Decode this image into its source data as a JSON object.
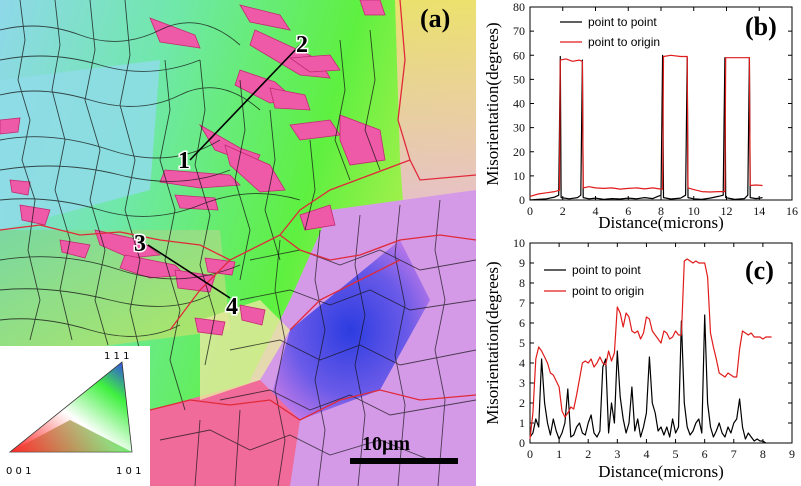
{
  "panel_a": {
    "label": "(a)",
    "point_labels": [
      "1",
      "2",
      "3",
      "4"
    ],
    "scale_bar": "10μm",
    "key": {
      "top": "1 1 1",
      "bottom_left": "0 0 1",
      "bottom_right": "1 0 1"
    },
    "colors": {
      "green": "#6fe85f",
      "cyan": "#7fe8e0",
      "pink": "#ee5aa8",
      "blue": "#3c57e8",
      "red_boundary": "#e02a3a",
      "grain_boundary": "#111111"
    }
  },
  "chart_data": [
    {
      "type": "line",
      "panel": "(b)",
      "xlabel": "Distance(microns)",
      "ylabel": "Misorientation(degrees)",
      "xlim": [
        0,
        16
      ],
      "ylim": [
        0,
        80
      ],
      "xticks": [
        0,
        2,
        4,
        6,
        8,
        10,
        12,
        14,
        16
      ],
      "yticks": [
        0,
        10,
        20,
        30,
        40,
        50,
        60,
        70,
        80
      ],
      "legend_position": "top-center",
      "series": [
        {
          "name": "point to point",
          "color": "#000000",
          "x": [
            0,
            0.5,
            1.0,
            1.5,
            1.75,
            1.8,
            1.85,
            1.9,
            2.4,
            2.9,
            3.1,
            3.15,
            3.2,
            3.25,
            3.6,
            4.0,
            4.5,
            5.0,
            5.5,
            6.0,
            6.5,
            7.0,
            7.5,
            7.8,
            8.0,
            8.05,
            8.1,
            8.15,
            8.6,
            9.2,
            9.5,
            9.55,
            9.6,
            9.65,
            10.0,
            10.5,
            11.0,
            11.5,
            11.8,
            11.85,
            11.9,
            11.95,
            12.5,
            13.1,
            13.3,
            13.35,
            13.4,
            13.45,
            13.8,
            14.2
          ],
          "y": [
            0,
            0.3,
            0.5,
            1.2,
            2,
            30,
            59.5,
            1,
            0.5,
            1,
            2,
            30,
            58,
            1,
            0.5,
            0.8,
            0.3,
            0.6,
            0.4,
            0.8,
            0.5,
            1.0,
            0.6,
            1.5,
            2,
            30,
            60,
            1,
            0.4,
            0.8,
            2,
            30,
            59,
            1,
            0.5,
            0.3,
            0.8,
            1.5,
            2,
            30,
            59,
            1,
            0.3,
            0.6,
            2,
            30,
            59,
            1,
            0.6,
            1.0
          ]
        },
        {
          "name": "point to origin",
          "color": "#e01b1b",
          "x": [
            0,
            0.5,
            1.0,
            1.5,
            1.8,
            1.85,
            2.2,
            2.6,
            3.0,
            3.2,
            3.25,
            3.6,
            4.0,
            4.5,
            5.0,
            5.5,
            6.0,
            6.5,
            7.0,
            7.5,
            8.0,
            8.1,
            8.15,
            8.6,
            9.2,
            9.6,
            9.65,
            10.0,
            10.5,
            11.0,
            11.5,
            11.9,
            11.95,
            12.5,
            13.4,
            13.45,
            13.8,
            14.2
          ],
          "y": [
            1.5,
            2.5,
            3.0,
            3.5,
            4,
            58,
            58.5,
            57.5,
            58,
            57.5,
            5,
            5.5,
            5,
            4.8,
            5,
            4.5,
            4.8,
            5,
            4.6,
            5,
            4.5,
            4.5,
            59.5,
            60,
            59.5,
            59.5,
            5,
            4.3,
            3.5,
            3.3,
            3.5,
            3.5,
            59,
            59,
            59,
            6,
            6.2,
            6
          ]
        }
      ]
    },
    {
      "type": "line",
      "panel": "(c)",
      "xlabel": "Distance(microns)",
      "ylabel": "Misorientation(degrees)",
      "xlim": [
        0,
        9
      ],
      "ylim": [
        0,
        10
      ],
      "xticks": [
        0,
        1,
        2,
        3,
        4,
        5,
        6,
        7,
        8,
        9
      ],
      "yticks": [
        0,
        1,
        2,
        3,
        4,
        5,
        6,
        7,
        8,
        9,
        10
      ],
      "legend_position": "top-left",
      "series": [
        {
          "name": "point to point",
          "color": "#000000",
          "x": [
            0,
            0.1,
            0.2,
            0.3,
            0.4,
            0.5,
            0.6,
            0.7,
            0.8,
            0.9,
            1.0,
            1.1,
            1.2,
            1.3,
            1.4,
            1.5,
            1.6,
            1.7,
            1.8,
            1.9,
            2.0,
            2.1,
            2.2,
            2.3,
            2.4,
            2.5,
            2.6,
            2.7,
            2.8,
            2.9,
            3.0,
            3.1,
            3.2,
            3.3,
            3.4,
            3.5,
            3.6,
            3.7,
            3.8,
            3.9,
            4.0,
            4.1,
            4.2,
            4.3,
            4.4,
            4.5,
            4.6,
            4.7,
            4.8,
            4.9,
            5.0,
            5.1,
            5.2,
            5.3,
            5.4,
            5.5,
            5.6,
            5.7,
            5.8,
            5.9,
            6.0,
            6.1,
            6.2,
            6.3,
            6.4,
            6.5,
            6.6,
            6.7,
            6.8,
            6.9,
            7.0,
            7.1,
            7.2,
            7.3,
            7.4,
            7.5,
            7.6,
            7.7,
            7.8,
            7.9,
            8.0,
            8.1
          ],
          "y": [
            0.3,
            0.5,
            1.2,
            0.8,
            4.2,
            2.0,
            1.0,
            0.4,
            1.2,
            0.6,
            0.2,
            0.5,
            1.0,
            2.7,
            0.3,
            0.4,
            0.8,
            1.0,
            0.5,
            0.4,
            1.0,
            1.4,
            0.5,
            0.3,
            0.6,
            3.8,
            4.2,
            0.5,
            2.0,
            1.0,
            4.6,
            2.3,
            1.2,
            0.5,
            1.0,
            2.8,
            0.6,
            1.2,
            0.3,
            0.8,
            1.5,
            4.3,
            2.0,
            1.5,
            0.6,
            0.8,
            0.4,
            0.8,
            0.3,
            1.2,
            0.5,
            0.8,
            6.1,
            2.0,
            0.8,
            0.4,
            0.6,
            1.0,
            1.2,
            0.5,
            6.4,
            2.0,
            0.8,
            0.3,
            0.6,
            1.0,
            0.5,
            0.3,
            0.8,
            0.5,
            1.0,
            1.2,
            2.2,
            0.8,
            0.2,
            0.5,
            0.3,
            0.1,
            0.2,
            0.1,
            0.1,
            0.0
          ]
        },
        {
          "name": "point to origin",
          "color": "#e01b1b",
          "x": [
            0,
            0.1,
            0.2,
            0.3,
            0.4,
            0.5,
            0.6,
            0.7,
            0.8,
            0.9,
            1.0,
            1.1,
            1.2,
            1.3,
            1.4,
            1.5,
            1.6,
            1.7,
            1.8,
            1.9,
            2.0,
            2.1,
            2.2,
            2.3,
            2.4,
            2.5,
            2.6,
            2.7,
            2.8,
            2.9,
            3.0,
            3.1,
            3.2,
            3.3,
            3.4,
            3.5,
            3.6,
            3.7,
            3.8,
            3.9,
            4.0,
            4.1,
            4.2,
            4.3,
            4.4,
            4.5,
            4.6,
            4.7,
            4.8,
            4.9,
            5.0,
            5.1,
            5.2,
            5.3,
            5.4,
            5.5,
            5.6,
            5.7,
            5.8,
            5.9,
            6.0,
            6.1,
            6.2,
            6.3,
            6.4,
            6.5,
            6.6,
            6.7,
            6.8,
            6.9,
            7.0,
            7.1,
            7.2,
            7.3,
            7.4,
            7.5,
            7.6,
            7.7,
            7.8,
            7.9,
            8.0,
            8.1,
            8.2,
            8.3
          ],
          "y": [
            0.2,
            1.5,
            4.2,
            4.8,
            4.6,
            4.3,
            4.0,
            3.5,
            3.4,
            3.1,
            2.8,
            1.6,
            1.3,
            1.5,
            1.8,
            1.7,
            2.4,
            3.2,
            4.0,
            4.1,
            4.0,
            4.2,
            3.8,
            4.0,
            4.3,
            4.0,
            3.9,
            4.6,
            4.1,
            4.5,
            6.8,
            6.5,
            5.8,
            6.5,
            6.3,
            5.6,
            5.5,
            5.6,
            5.2,
            5.5,
            6.3,
            6.2,
            5.6,
            5.4,
            5.2,
            5.0,
            5.6,
            5.5,
            5.2,
            5.3,
            5.6,
            5.4,
            5.4,
            9.1,
            9.2,
            9.1,
            9.0,
            9.1,
            9.0,
            9.0,
            9.0,
            8.3,
            5.5,
            4.8,
            4.2,
            3.5,
            3.4,
            3.3,
            3.5,
            3.4,
            3.3,
            3.3,
            4.7,
            5.6,
            5.5,
            5.4,
            5.5,
            5.3,
            5.3,
            5.3,
            5.2,
            5.3,
            5.3,
            5.3
          ]
        }
      ]
    }
  ]
}
